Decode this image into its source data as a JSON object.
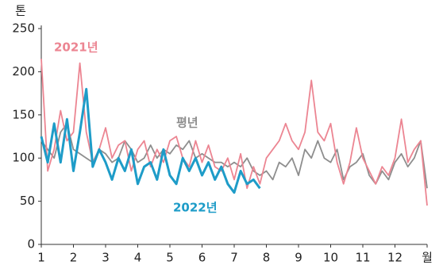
{
  "chart_data": {
    "type": "line",
    "y_label": "톤",
    "x": [
      1,
      1.2,
      1.4,
      1.6,
      1.8,
      2,
      2.2,
      2.4,
      2.6,
      2.8,
      3,
      3.2,
      3.4,
      3.6,
      3.8,
      4,
      4.2,
      4.4,
      4.6,
      4.8,
      5,
      5.2,
      5.4,
      5.6,
      5.8,
      6,
      6.2,
      6.4,
      6.6,
      6.8,
      7,
      7.2,
      7.4,
      7.6,
      7.8,
      8,
      8.2,
      8.4,
      8.6,
      8.8,
      9,
      9.2,
      9.4,
      9.6,
      9.8,
      10,
      10.2,
      10.4,
      10.6,
      10.8,
      11,
      11.2,
      11.4,
      11.6,
      11.8,
      12,
      12.2,
      12.4,
      12.6,
      12.8,
      13
    ],
    "series": [
      {
        "name": "2021년",
        "color": "#ec8592",
        "values": [
          215,
          85,
          110,
          155,
          120,
          130,
          210,
          130,
          95,
          110,
          135,
          100,
          115,
          120,
          85,
          110,
          120,
          90,
          110,
          95,
          120,
          125,
          100,
          90,
          120,
          95,
          115,
          90,
          85,
          100,
          75,
          105,
          65,
          90,
          70,
          100,
          110,
          120,
          140,
          120,
          110,
          130,
          190,
          130,
          120,
          140,
          95,
          70,
          95,
          135,
          100,
          85,
          70,
          90,
          80,
          100,
          145,
          95,
          110,
          120,
          45
        ]
      },
      {
        "name": "평년",
        "color": "#8e8e8e",
        "values": [
          120,
          110,
          100,
          130,
          140,
          110,
          105,
          100,
          95,
          110,
          105,
          95,
          100,
          120,
          110,
          95,
          100,
          115,
          100,
          110,
          105,
          115,
          110,
          120,
          100,
          105,
          100,
          95,
          95,
          90,
          95,
          90,
          100,
          85,
          80,
          85,
          75,
          95,
          90,
          100,
          80,
          110,
          100,
          120,
          100,
          95,
          110,
          75,
          90,
          95,
          105,
          80,
          70,
          85,
          75,
          95,
          105,
          90,
          100,
          120,
          65
        ]
      },
      {
        "name": "2022년",
        "color": "#1e9cc8",
        "values": [
          125,
          95,
          140,
          95,
          145,
          85,
          130,
          180,
          90,
          110,
          95,
          75,
          100,
          85,
          110,
          70,
          90,
          95,
          75,
          110,
          80,
          70,
          100,
          85,
          100,
          80,
          95,
          75,
          90,
          70,
          60,
          85,
          70,
          75,
          65,
          null,
          null,
          null,
          null,
          null,
          null,
          null,
          null,
          null,
          null,
          null,
          null,
          null,
          null,
          null,
          null,
          null,
          null,
          null,
          null,
          null,
          null,
          null,
          null,
          null,
          null
        ]
      }
    ],
    "xlim": [
      1,
      13
    ],
    "ylim": [
      0,
      250
    ],
    "xticks": [
      1,
      2,
      3,
      4,
      5,
      6,
      7,
      8,
      9,
      10,
      11,
      12,
      {
        "value": 13,
        "label": "월"
      }
    ],
    "yticks": [
      0,
      50,
      100,
      150,
      200,
      250
    ]
  }
}
